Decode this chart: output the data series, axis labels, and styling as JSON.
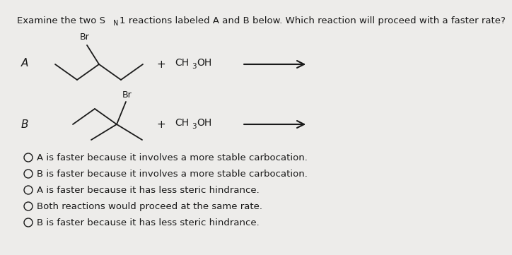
{
  "background_color": "#edecea",
  "text_color": "#1a1a1a",
  "title_part1": "Examine the two S",
  "title_sub": "N",
  "title_part2": "1 reactions labeled A and B below. Which reaction will proceed with a faster rate?",
  "options": [
    "A is faster because it involves a more stable carbocation.",
    "B is faster because it involves a more stable carbocation.",
    "A is faster because it has less steric hindrance.",
    "Both reactions would proceed at the same rate.",
    "B is faster because it has less steric hindrance."
  ],
  "title_fontsize": 9.5,
  "option_fontsize": 9.5,
  "label_fontsize": 11,
  "br_fontsize": 9,
  "reagent_fontsize": 10,
  "sub_fontsize": 7.5
}
